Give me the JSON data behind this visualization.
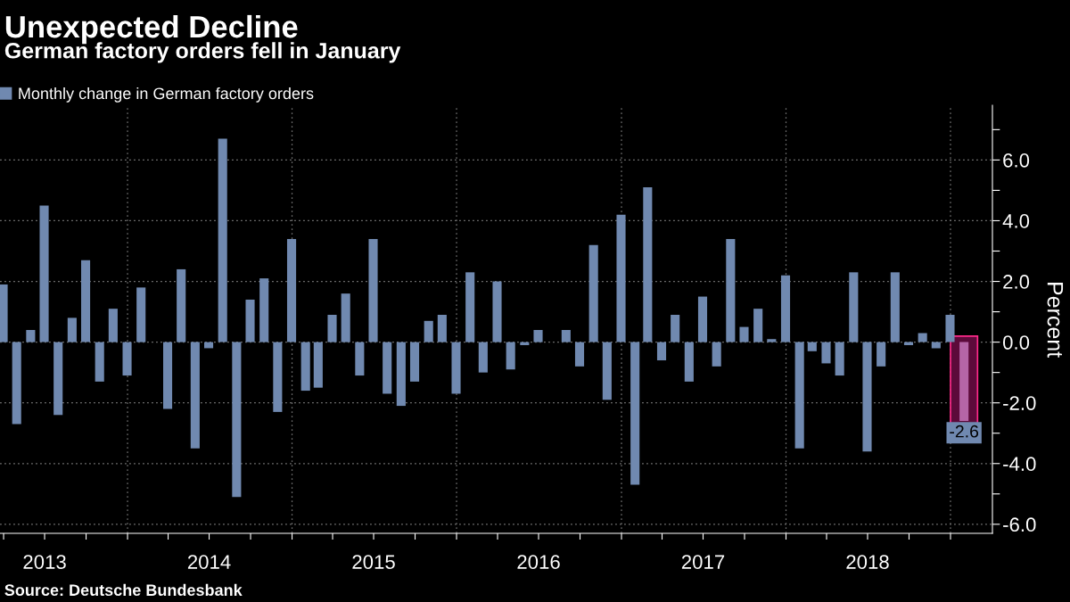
{
  "chart_data": {
    "type": "bar",
    "title": "Unexpected Decline",
    "subtitle": "German factory orders fell in January",
    "ylabel": "Percent",
    "annotations": [
      "Source: Deutsche Bundesbank"
    ],
    "x": [
      "2013-03-31",
      "2013-04-30",
      "2013-05-31",
      "2013-06-30",
      "2013-07-31",
      "2013-08-31",
      "2013-09-30",
      "2013-10-31",
      "2013-11-30",
      "2013-12-31",
      "2014-01-31",
      "2014-02-28",
      "2014-03-31",
      "2014-04-30",
      "2014-05-31",
      "2014-06-30",
      "2014-07-31",
      "2014-08-31",
      "2014-09-30",
      "2014-10-31",
      "2014-11-30",
      "2014-12-31",
      "2015-01-31",
      "2015-02-28",
      "2015-03-31",
      "2015-04-30",
      "2015-05-31",
      "2015-06-30",
      "2015-07-31",
      "2015-08-31",
      "2015-09-30",
      "2015-10-31",
      "2015-11-30",
      "2015-12-31",
      "2016-01-31",
      "2016-02-29",
      "2016-03-31",
      "2016-04-30",
      "2016-05-31",
      "2016-06-30",
      "2016-07-31",
      "2016-08-31",
      "2016-09-30",
      "2016-10-31",
      "2016-11-30",
      "2016-12-31",
      "2017-01-31",
      "2017-02-28",
      "2017-03-31",
      "2017-04-30",
      "2017-05-31",
      "2017-06-30",
      "2017-07-31",
      "2017-08-31",
      "2017-09-30",
      "2017-10-31",
      "2017-11-30",
      "2017-12-31",
      "2018-01-31",
      "2018-02-28",
      "2018-03-31",
      "2018-04-30",
      "2018-05-31",
      "2018-06-30",
      "2018-07-31",
      "2018-08-31",
      "2018-09-30",
      "2018-10-31",
      "2018-11-30",
      "2018-12-31",
      "2019-01-31"
    ],
    "series": [
      {
        "name": "Monthly change in German factory orders",
        "color": "#7089b0",
        "colors": [
          "#7089b0",
          "#7089b0",
          "#7089b0",
          "#7089b0",
          "#7089b0",
          "#7089b0",
          "#7089b0",
          "#7089b0",
          "#7089b0",
          "#7089b0",
          "#7089b0",
          "#7089b0",
          "#7089b0",
          "#7089b0",
          "#7089b0",
          "#7089b0",
          "#7089b0",
          "#7089b0",
          "#7089b0",
          "#7089b0",
          "#7089b0",
          "#7089b0",
          "#7089b0",
          "#7089b0",
          "#7089b0",
          "#7089b0",
          "#7089b0",
          "#7089b0",
          "#7089b0",
          "#7089b0",
          "#7089b0",
          "#7089b0",
          "#7089b0",
          "#7089b0",
          "#7089b0",
          "#7089b0",
          "#7089b0",
          "#7089b0",
          "#7089b0",
          "#7089b0",
          "#7089b0",
          "#7089b0",
          "#7089b0",
          "#7089b0",
          "#7089b0",
          "#7089b0",
          "#7089b0",
          "#7089b0",
          "#7089b0",
          "#7089b0",
          "#7089b0",
          "#7089b0",
          "#7089b0",
          "#7089b0",
          "#7089b0",
          "#7089b0",
          "#7089b0",
          "#7089b0",
          "#7089b0",
          "#7089b0",
          "#7089b0",
          "#7089b0",
          "#7089b0",
          "#7089b0",
          "#7089b0",
          "#7089b0",
          "#7089b0",
          "#7089b0",
          "#7089b0",
          "#7089b0",
          "#b565a7"
        ],
        "values": [
          1.9,
          -2.7,
          0.4,
          4.5,
          -2.4,
          0.8,
          2.7,
          -1.3,
          1.1,
          -1.1,
          1.8,
          0.0,
          -2.2,
          2.4,
          -3.5,
          -0.2,
          6.7,
          -5.1,
          1.4,
          2.1,
          -2.3,
          3.4,
          -1.6,
          -1.5,
          0.9,
          1.6,
          -1.1,
          3.4,
          -1.7,
          -2.1,
          -1.3,
          0.7,
          0.9,
          -1.7,
          2.3,
          -1.0,
          2.0,
          -0.9,
          -0.1,
          0.4,
          0.0,
          0.4,
          -0.8,
          3.2,
          -1.9,
          4.2,
          -4.7,
          5.1,
          -0.6,
          0.9,
          -1.3,
          1.5,
          -0.8,
          3.4,
          0.5,
          1.1,
          0.1,
          2.2,
          -3.5,
          -0.3,
          -0.7,
          -1.1,
          2.3,
          -3.6,
          -0.8,
          2.3,
          -0.1,
          0.3,
          -0.2,
          0.9,
          -2.6
        ],
        "value_labels": [
          null,
          null,
          null,
          null,
          null,
          null,
          null,
          null,
          null,
          null,
          null,
          null,
          null,
          null,
          null,
          null,
          null,
          null,
          null,
          null,
          null,
          null,
          null,
          null,
          null,
          null,
          null,
          null,
          null,
          null,
          null,
          null,
          null,
          null,
          null,
          null,
          null,
          null,
          null,
          null,
          null,
          null,
          null,
          null,
          null,
          null,
          null,
          null,
          null,
          null,
          null,
          null,
          null,
          null,
          null,
          null,
          null,
          null,
          null,
          null,
          null,
          null,
          null,
          null,
          null,
          null,
          null,
          null,
          null,
          null,
          "-2.6"
        ]
      }
    ],
    "xlim": [
      "2013-03-24",
      "2019-04-04"
    ],
    "xticks": [
      {
        "value": "2013-04-01",
        "label": null
      },
      {
        "value": "2013-07-01",
        "label": "2013"
      },
      {
        "value": "2013-10-01",
        "label": null
      },
      {
        "value": "2014-01-01",
        "label": null
      },
      {
        "value": "2014-04-01",
        "label": null
      },
      {
        "value": "2014-07-01",
        "label": "2014"
      },
      {
        "value": "2014-10-01",
        "label": null
      },
      {
        "value": "2015-01-01",
        "label": null
      },
      {
        "value": "2015-04-01",
        "label": null
      },
      {
        "value": "2015-07-01",
        "label": "2015"
      },
      {
        "value": "2015-10-01",
        "label": null
      },
      {
        "value": "2016-01-01",
        "label": null
      },
      {
        "value": "2016-04-01",
        "label": null
      },
      {
        "value": "2016-07-01",
        "label": "2016"
      },
      {
        "value": "2016-10-01",
        "label": null
      },
      {
        "value": "2017-01-01",
        "label": null
      },
      {
        "value": "2017-04-01",
        "label": null
      },
      {
        "value": "2017-07-01",
        "label": "2017"
      },
      {
        "value": "2017-10-01",
        "label": null
      },
      {
        "value": "2018-01-01",
        "label": null
      },
      {
        "value": "2018-04-01",
        "label": null
      },
      {
        "value": "2018-07-01",
        "label": "2018"
      },
      {
        "value": "2018-10-01",
        "label": null
      },
      {
        "value": "2019-01-01",
        "label": null
      }
    ],
    "ylim": [
      -6.3,
      7.8
    ],
    "yticks": [
      {
        "value": -6,
        "label": "-6.0"
      },
      {
        "value": -5,
        "label": null
      },
      {
        "value": -4,
        "label": "-4.0"
      },
      {
        "value": -3,
        "label": null
      },
      {
        "value": -2,
        "label": "-2.0"
      },
      {
        "value": -1,
        "label": null
      },
      {
        "value": 0,
        "label": "0.0"
      },
      {
        "value": 1,
        "label": null
      },
      {
        "value": 2,
        "label": "2.0"
      },
      {
        "value": 3,
        "label": null
      },
      {
        "value": 4,
        "label": "4.0"
      },
      {
        "value": 5,
        "label": null
      },
      {
        "value": 6,
        "label": "6.0"
      },
      {
        "value": 7,
        "label": null
      }
    ],
    "ref_lines": [
      {
        "axis": "x",
        "value": "2014-01-01",
        "label": null,
        "color": "#6e6e6e",
        "line_style": "dotted"
      },
      {
        "axis": "x",
        "value": "2015-01-01",
        "label": null,
        "color": "#6e6e6e",
        "line_style": "dotted"
      },
      {
        "axis": "x",
        "value": "2016-01-01",
        "label": null,
        "color": "#6e6e6e",
        "line_style": "dotted"
      },
      {
        "axis": "x",
        "value": "2017-01-01",
        "label": null,
        "color": "#6e6e6e",
        "line_style": "dotted"
      },
      {
        "axis": "x",
        "value": "2018-01-01",
        "label": null,
        "color": "#6e6e6e",
        "line_style": "dotted"
      },
      {
        "axis": "x",
        "value": "2019-01-01",
        "label": null,
        "color": "#6e6e6e",
        "line_style": "dotted"
      }
    ],
    "grid": "y",
    "legend": "top left"
  }
}
